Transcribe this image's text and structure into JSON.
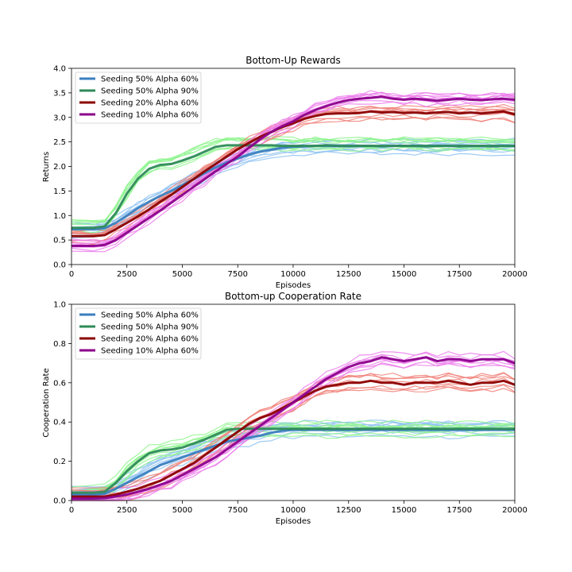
{
  "colors": {
    "series_1": "#3a7ebf",
    "series_1_runs": "#8ec2f2",
    "series_2": "#2e8b57",
    "series_2_runs": "#8ff58f",
    "series_3": "#8b0000",
    "series_3_runs": "#f08078",
    "series_4": "#8b008b",
    "series_4_runs": "#ec7cec"
  },
  "chart_data": [
    {
      "type": "line",
      "title": "Bottom-Up Rewards",
      "xlabel": "Episodes",
      "ylabel": "Returns",
      "xlim": [
        0,
        20000
      ],
      "ylim": [
        0,
        4.0
      ],
      "xticks": [
        "0",
        "2500",
        "5000",
        "7500",
        "10000",
        "12500",
        "15000",
        "17500",
        "20000"
      ],
      "yticks": [
        "0.0",
        "0.5",
        "1.0",
        "1.5",
        "2.0",
        "2.5",
        "3.0",
        "3.5",
        "4.0"
      ],
      "legend_position": "top-left",
      "grid": false,
      "x": [
        0,
        1000,
        1500,
        2000,
        2500,
        3000,
        3500,
        4000,
        4500,
        5000,
        5500,
        6000,
        6500,
        7000,
        7500,
        8000,
        8500,
        9000,
        9500,
        10000,
        10500,
        11000,
        11500,
        12000,
        12500,
        13000,
        13500,
        14000,
        14500,
        15000,
        15500,
        16000,
        16500,
        17000,
        17500,
        18000,
        18500,
        19000,
        19500,
        20000
      ],
      "series": [
        {
          "name": "Seeding 50% Alpha 60%",
          "values": [
            0.72,
            0.72,
            0.74,
            0.85,
            1.0,
            1.15,
            1.28,
            1.4,
            1.5,
            1.62,
            1.74,
            1.86,
            1.98,
            2.08,
            2.16,
            2.24,
            2.3,
            2.34,
            2.38,
            2.4,
            2.41,
            2.42,
            2.42,
            2.42,
            2.41,
            2.42,
            2.42,
            2.41,
            2.42,
            2.42,
            2.42,
            2.41,
            2.42,
            2.42,
            2.41,
            2.42,
            2.42,
            2.41,
            2.42,
            2.42
          ]
        },
        {
          "name": "Seeding 50% Alpha 90%",
          "values": [
            0.75,
            0.75,
            0.78,
            1.05,
            1.45,
            1.75,
            1.95,
            2.03,
            2.05,
            2.12,
            2.2,
            2.3,
            2.4,
            2.43,
            2.43,
            2.43,
            2.43,
            2.43,
            2.42,
            2.42,
            2.42,
            2.42,
            2.43,
            2.42,
            2.42,
            2.42,
            2.42,
            2.42,
            2.42,
            2.42,
            2.42,
            2.42,
            2.42,
            2.42,
            2.42,
            2.42,
            2.42,
            2.42,
            2.42,
            2.42
          ]
        },
        {
          "name": "Seeding 20% Alpha 60%",
          "values": [
            0.58,
            0.58,
            0.6,
            0.72,
            0.85,
            0.98,
            1.12,
            1.28,
            1.42,
            1.58,
            1.74,
            1.9,
            2.05,
            2.2,
            2.35,
            2.48,
            2.6,
            2.7,
            2.8,
            2.88,
            2.97,
            3.03,
            3.07,
            3.08,
            3.08,
            3.09,
            3.12,
            3.1,
            3.11,
            3.09,
            3.1,
            3.08,
            3.1,
            3.11,
            3.08,
            3.1,
            3.08,
            3.1,
            3.12,
            3.06
          ]
        },
        {
          "name": "Seeding 10% Alpha 60%",
          "values": [
            0.38,
            0.38,
            0.4,
            0.5,
            0.65,
            0.8,
            0.95,
            1.1,
            1.26,
            1.42,
            1.58,
            1.74,
            1.9,
            2.05,
            2.2,
            2.38,
            2.55,
            2.7,
            2.82,
            2.92,
            3.05,
            3.15,
            3.23,
            3.3,
            3.35,
            3.38,
            3.4,
            3.42,
            3.38,
            3.36,
            3.38,
            3.36,
            3.34,
            3.36,
            3.38,
            3.36,
            3.35,
            3.37,
            3.38,
            3.36
          ]
        }
      ]
    },
    {
      "type": "line",
      "title": "Bottom-up Cooperation Rate",
      "xlabel": "Episodes",
      "ylabel": "Cooperation Rate",
      "xlim": [
        0,
        20000
      ],
      "ylim": [
        0,
        1.0
      ],
      "xticks": [
        "0",
        "2500",
        "5000",
        "7500",
        "10000",
        "12500",
        "15000",
        "17500",
        "20000"
      ],
      "yticks": [
        "0.0",
        "0.2",
        "0.4",
        "0.6",
        "0.8",
        "1.0"
      ],
      "legend_position": "top-left",
      "grid": false,
      "x": [
        0,
        1000,
        1500,
        2000,
        2500,
        3000,
        3500,
        4000,
        4500,
        5000,
        5500,
        6000,
        6500,
        7000,
        7500,
        8000,
        8500,
        9000,
        9500,
        10000,
        10500,
        11000,
        11500,
        12000,
        12500,
        13000,
        13500,
        14000,
        14500,
        15000,
        15500,
        16000,
        16500,
        17000,
        17500,
        18000,
        18500,
        19000,
        19500,
        20000
      ],
      "series": [
        {
          "name": "Seeding 50% Alpha 60%",
          "values": [
            0.03,
            0.03,
            0.035,
            0.06,
            0.09,
            0.12,
            0.15,
            0.18,
            0.2,
            0.22,
            0.24,
            0.26,
            0.28,
            0.3,
            0.31,
            0.32,
            0.33,
            0.345,
            0.355,
            0.36,
            0.36,
            0.36,
            0.36,
            0.36,
            0.36,
            0.36,
            0.36,
            0.36,
            0.36,
            0.36,
            0.36,
            0.36,
            0.36,
            0.36,
            0.36,
            0.36,
            0.36,
            0.36,
            0.36,
            0.36
          ]
        },
        {
          "name": "Seeding 50% Alpha 90%",
          "values": [
            0.04,
            0.04,
            0.045,
            0.09,
            0.15,
            0.2,
            0.24,
            0.255,
            0.26,
            0.27,
            0.29,
            0.31,
            0.335,
            0.36,
            0.365,
            0.365,
            0.365,
            0.365,
            0.365,
            0.365,
            0.365,
            0.365,
            0.365,
            0.365,
            0.365,
            0.365,
            0.365,
            0.365,
            0.365,
            0.365,
            0.365,
            0.365,
            0.365,
            0.365,
            0.365,
            0.365,
            0.365,
            0.365,
            0.365,
            0.365
          ]
        },
        {
          "name": "Seeding 20% Alpha 60%",
          "values": [
            0.02,
            0.02,
            0.02,
            0.03,
            0.045,
            0.06,
            0.08,
            0.1,
            0.13,
            0.16,
            0.19,
            0.23,
            0.27,
            0.31,
            0.35,
            0.39,
            0.42,
            0.44,
            0.47,
            0.5,
            0.53,
            0.56,
            0.58,
            0.59,
            0.6,
            0.6,
            0.61,
            0.6,
            0.6,
            0.59,
            0.6,
            0.6,
            0.6,
            0.61,
            0.6,
            0.59,
            0.6,
            0.6,
            0.61,
            0.59
          ]
        },
        {
          "name": "Seeding 10% Alpha 60%",
          "values": [
            0.01,
            0.01,
            0.012,
            0.02,
            0.03,
            0.045,
            0.06,
            0.08,
            0.1,
            0.13,
            0.16,
            0.19,
            0.22,
            0.26,
            0.3,
            0.34,
            0.38,
            0.42,
            0.46,
            0.5,
            0.54,
            0.58,
            0.62,
            0.65,
            0.68,
            0.7,
            0.71,
            0.73,
            0.72,
            0.71,
            0.72,
            0.73,
            0.71,
            0.72,
            0.72,
            0.71,
            0.72,
            0.72,
            0.72,
            0.7
          ]
        }
      ]
    }
  ]
}
